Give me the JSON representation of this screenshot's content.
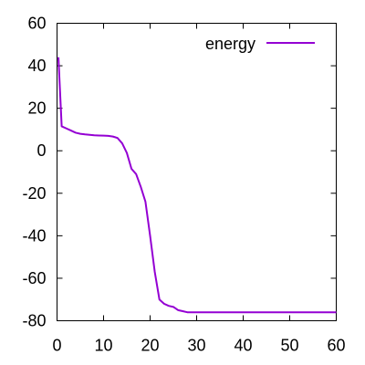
{
  "chart_data": {
    "type": "line",
    "xlim": [
      0,
      60
    ],
    "ylim": [
      -80,
      60
    ],
    "xticks": [
      0,
      10,
      20,
      30,
      40,
      50,
      60
    ],
    "yticks": [
      60,
      40,
      20,
      0,
      -20,
      -40,
      -60,
      -80
    ],
    "grid": false,
    "legend_position": "top-right",
    "series": [
      {
        "name": "energy",
        "color": "#9400D3",
        "x": [
          0.3,
          1,
          2,
          3,
          4,
          5,
          6,
          7,
          8,
          9,
          10,
          11,
          12,
          13,
          14,
          15,
          16,
          17,
          18,
          19,
          20,
          21,
          22,
          23,
          24,
          25,
          26,
          27,
          28,
          29,
          30,
          32,
          35,
          40,
          45,
          50,
          55,
          60
        ],
        "y": [
          44,
          11.5,
          10.5,
          9.5,
          8.5,
          8,
          7.7,
          7.5,
          7.3,
          7.2,
          7.1,
          7,
          6.7,
          6,
          3.5,
          -1,
          -8.5,
          -11,
          -17,
          -24,
          -40,
          -57,
          -70,
          -72,
          -73,
          -73.5,
          -75,
          -75.5,
          -76,
          -76,
          -76,
          -76,
          -76,
          -76,
          -76,
          -76,
          -76,
          -76
        ]
      }
    ]
  }
}
